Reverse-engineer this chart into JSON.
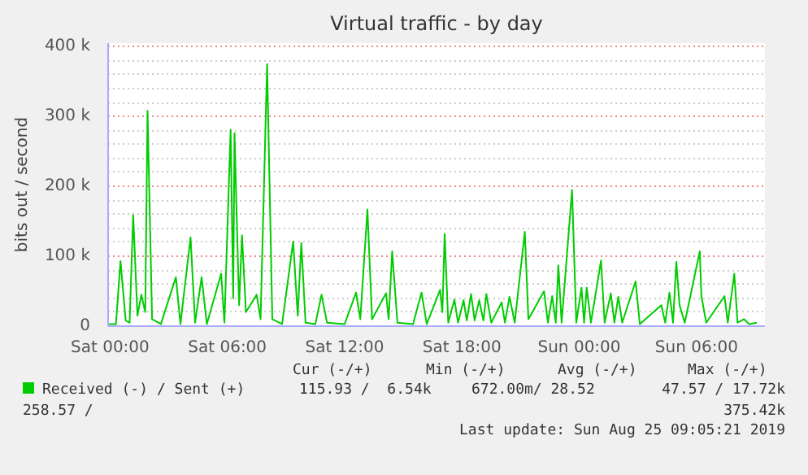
{
  "chart_data": {
    "type": "line",
    "title": "Virtual traffic - by day",
    "ylabel": "bits out / second",
    "xlim": [
      "2019-08-23T23:54",
      "2019-08-25T09:30"
    ],
    "ylim": [
      0,
      405000
    ],
    "xticks": [
      {
        "value": "2019-08-24T00:00",
        "label": "Sat 00:00"
      },
      {
        "value": "2019-08-24T06:00",
        "label": "Sat 06:00"
      },
      {
        "value": "2019-08-24T12:00",
        "label": "Sat 12:00"
      },
      {
        "value": "2019-08-24T18:00",
        "label": "Sat 18:00"
      },
      {
        "value": "2019-08-25T00:00",
        "label": "Sun 00:00"
      },
      {
        "value": "2019-08-25T06:00",
        "label": "Sun 06:00"
      }
    ],
    "yticks": [
      0,
      {
        "value": 100000,
        "label": "100 k"
      },
      {
        "value": 200000,
        "label": "200 k"
      },
      {
        "value": 300000,
        "label": "300 k"
      },
      {
        "value": 400000,
        "label": "400 k"
      }
    ],
    "grid": true,
    "legend": "bottom",
    "marker": "none",
    "line_style": "solid",
    "series": [
      {
        "name": "Received (-) / Sent (+)",
        "color": "#00cc00",
        "x": [
          "2019-08-23T23:54",
          "2019-08-24T00:18",
          "2019-08-24T00:32",
          "2019-08-24T00:48",
          "2019-08-24T01:00",
          "2019-08-24T01:11",
          "2019-08-24T01:24",
          "2019-08-24T01:36",
          "2019-08-24T01:48",
          "2019-08-24T01:55",
          "2019-08-24T02:09",
          "2019-08-24T02:36",
          "2019-08-24T03:22",
          "2019-08-24T03:36",
          "2019-08-24T04:07",
          "2019-08-24T04:21",
          "2019-08-24T04:41",
          "2019-08-24T04:57",
          "2019-08-24T05:41",
          "2019-08-24T05:51",
          "2019-08-24T06:10",
          "2019-08-24T06:18",
          "2019-08-24T06:22",
          "2019-08-24T06:36",
          "2019-08-24T06:45",
          "2019-08-24T06:57",
          "2019-08-24T07:30",
          "2019-08-24T07:42",
          "2019-08-24T08:02",
          "2019-08-24T08:18",
          "2019-08-24T08:48",
          "2019-08-24T09:22",
          "2019-08-24T09:36",
          "2019-08-24T09:47",
          "2019-08-24T10:00",
          "2019-08-24T10:30",
          "2019-08-24T10:49",
          "2019-08-24T11:06",
          "2019-08-24T12:00",
          "2019-08-24T12:35",
          "2019-08-24T12:48",
          "2019-08-24T13:10",
          "2019-08-24T13:24",
          "2019-08-24T14:07",
          "2019-08-24T14:15",
          "2019-08-24T14:26",
          "2019-08-24T14:42",
          "2019-08-24T15:30",
          "2019-08-24T15:56",
          "2019-08-24T16:12",
          "2019-08-24T16:53",
          "2019-08-24T17:00",
          "2019-08-24T17:07",
          "2019-08-24T17:18",
          "2019-08-24T17:37",
          "2019-08-24T17:48",
          "2019-08-24T18:05",
          "2019-08-24T18:15",
          "2019-08-24T18:28",
          "2019-08-24T18:39",
          "2019-08-24T18:53",
          "2019-08-24T19:06",
          "2019-08-24T19:15",
          "2019-08-24T19:30",
          "2019-08-24T20:02",
          "2019-08-24T20:12",
          "2019-08-24T20:26",
          "2019-08-24T20:42",
          "2019-08-24T21:13",
          "2019-08-24T21:24",
          "2019-08-24T22:12",
          "2019-08-24T22:24",
          "2019-08-24T22:37",
          "2019-08-24T22:48",
          "2019-08-24T22:56",
          "2019-08-24T23:06",
          "2019-08-24T23:38",
          "2019-08-24T23:51",
          "2019-08-25T00:07",
          "2019-08-25T00:15",
          "2019-08-25T00:23",
          "2019-08-25T00:36",
          "2019-08-25T01:07",
          "2019-08-25T01:18",
          "2019-08-25T01:37",
          "2019-08-25T01:48",
          "2019-08-25T02:00",
          "2019-08-25T02:12",
          "2019-08-25T02:53",
          "2019-08-25T03:06",
          "2019-08-25T04:12",
          "2019-08-25T04:24",
          "2019-08-25T04:37",
          "2019-08-25T04:48",
          "2019-08-25T04:58",
          "2019-08-25T05:08",
          "2019-08-25T05:24",
          "2019-08-25T06:10",
          "2019-08-25T06:15",
          "2019-08-25T06:30",
          "2019-08-25T07:26",
          "2019-08-25T07:36",
          "2019-08-25T07:56",
          "2019-08-25T08:06",
          "2019-08-25T08:26",
          "2019-08-25T08:42",
          "2019-08-25T09:05"
        ],
        "values": [
          3000,
          3000,
          93000,
          8000,
          5000,
          159000,
          15000,
          45000,
          20000,
          308000,
          10000,
          3000,
          70000,
          3000,
          127000,
          5000,
          70000,
          3000,
          75000,
          5000,
          281000,
          40000,
          276000,
          30000,
          130000,
          20000,
          45000,
          10000,
          375000,
          10000,
          3000,
          121000,
          15000,
          119000,
          5000,
          3000,
          45000,
          5000,
          3000,
          48000,
          10000,
          167000,
          10000,
          47000,
          10000,
          107000,
          5000,
          3000,
          48000,
          3000,
          52000,
          20000,
          132000,
          5000,
          38000,
          5000,
          37000,
          8000,
          46000,
          8000,
          37000,
          8000,
          46000,
          5000,
          34000,
          5000,
          42000,
          5000,
          135000,
          10000,
          50000,
          5000,
          43000,
          5000,
          87000,
          5000,
          195000,
          5000,
          55000,
          5000,
          55000,
          5000,
          94000,
          5000,
          47000,
          5000,
          42000,
          5000,
          64000,
          3000,
          30000,
          5000,
          48000,
          5000,
          92000,
          30000,
          5000,
          107000,
          43000,
          5000,
          43000,
          5000,
          75000,
          5000,
          10000,
          3000,
          5000
        ]
      }
    ],
    "annotations": [
      "Cur (-/+)",
      "Min (-/+)",
      "Avg (-/+)",
      "Max (-/+)",
      "115.93 /  6.54k",
      "672.00m/ 28.52",
      "47.57 / 17.72k",
      "258.57 /",
      "375.42k",
      "Last update: Sun Aug 25 09:05:21 2019"
    ]
  }
}
